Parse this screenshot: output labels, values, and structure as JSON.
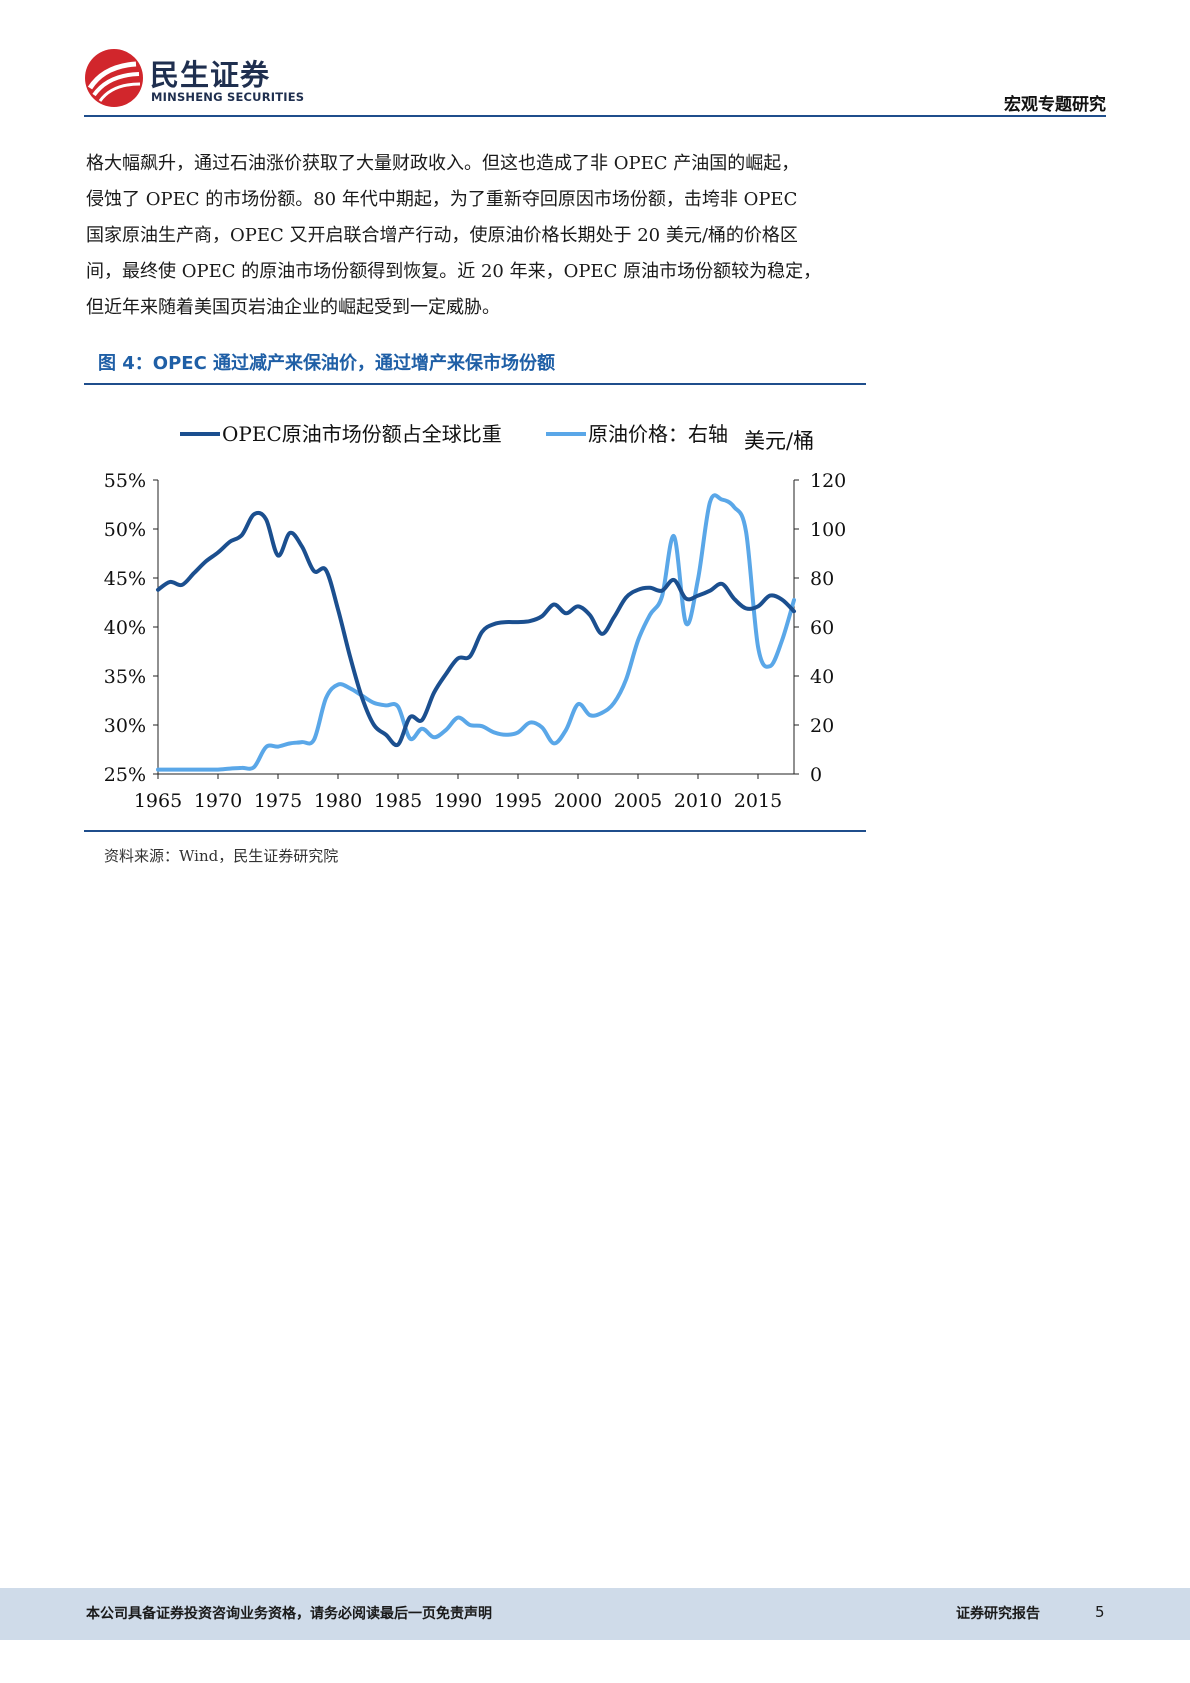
{
  "header": {
    "logo_cn": "民生证券",
    "logo_en": "MINSHENG SECURITIES",
    "title": "宏观专题研究"
  },
  "body": {
    "lines": [
      "格大幅飙升，通过石油涨价获取了大量财政收入。但这也造成了非 OPEC 产油国的崛起，",
      "侵蚀了 OPEC 的市场份额。80 年代中期起，为了重新夺回原因市场份额，击垮非 OPEC",
      "国家原油生产商，OPEC 又开启联合增产行动，使原油价格长期处于 20 美元/桶的价格区",
      "间，最终使 OPEC 的原油市场份额得到恢复。近 20 年来，OPEC 原油市场份额较为稳定，",
      "但近年来随着美国页岩油企业的崛起受到一定威胁。"
    ]
  },
  "figure": {
    "title": "图 4：OPEC 通过减产来保油价，通过增产来保市场份额",
    "source": "资料来源：Wind，民生证券研究院"
  },
  "chart_data": {
    "type": "line",
    "title": "",
    "left_axis": {
      "label": "",
      "range": [
        25,
        55
      ],
      "ticks": [
        25,
        30,
        35,
        40,
        45,
        50,
        55
      ],
      "tick_labels": [
        "25%",
        "30%",
        "35%",
        "40%",
        "45%",
        "50%",
        "55%"
      ]
    },
    "right_axis": {
      "label": "美元/桶",
      "range": [
        0,
        120
      ],
      "ticks": [
        0,
        20,
        40,
        60,
        80,
        100,
        120
      ],
      "tick_labels": [
        "0",
        "20",
        "40",
        "60",
        "80",
        "100",
        "120"
      ]
    },
    "x_axis": {
      "range": [
        1965,
        2018
      ],
      "ticks": [
        1965,
        1970,
        1975,
        1980,
        1985,
        1990,
        1995,
        2000,
        2005,
        2010,
        2015
      ],
      "tick_labels": [
        "1965",
        "1970",
        "1975",
        "1980",
        "1985",
        "1990",
        "1995",
        "2000",
        "2005",
        "2010",
        "2015"
      ]
    },
    "legend_position": "top",
    "grid": false,
    "x": [
      1965,
      1966,
      1967,
      1968,
      1969,
      1970,
      1971,
      1972,
      1973,
      1974,
      1975,
      1976,
      1977,
      1978,
      1979,
      1980,
      1981,
      1982,
      1983,
      1984,
      1985,
      1986,
      1987,
      1988,
      1989,
      1990,
      1991,
      1992,
      1993,
      1994,
      1995,
      1996,
      1997,
      1998,
      1999,
      2000,
      2001,
      2002,
      2003,
      2004,
      2005,
      2006,
      2007,
      2008,
      2009,
      2010,
      2011,
      2012,
      2013,
      2014,
      2015,
      2016,
      2017,
      2018
    ],
    "series": [
      {
        "name": "OPEC原油市场份额占全球比重",
        "axis": "left",
        "color": "#1b4f8f",
        "values": [
          43.8,
          44.6,
          44.3,
          45.5,
          46.7,
          47.6,
          48.7,
          49.4,
          51.5,
          51.0,
          47.3,
          49.6,
          48.2,
          45.7,
          45.8,
          41.8,
          37.0,
          32.8,
          30.0,
          29.0,
          28.0,
          30.8,
          30.5,
          33.3,
          35.2,
          36.8,
          37.0,
          39.5,
          40.3,
          40.5,
          40.5,
          40.6,
          41.1,
          42.3,
          41.4,
          42.1,
          41.2,
          39.3,
          41.0,
          43.0,
          43.8,
          44.0,
          43.7,
          44.8,
          42.9,
          43.2,
          43.7,
          44.4,
          42.9,
          41.9,
          42.1,
          43.2,
          42.8,
          41.6
        ]
      },
      {
        "name": "原油价格：右轴",
        "axis": "right",
        "color": "#5aa7e8",
        "values": [
          1.8,
          1.8,
          1.8,
          1.8,
          1.8,
          1.8,
          2.2,
          2.5,
          2.8,
          11.0,
          11.2,
          12.5,
          13.0,
          14.0,
          31.0,
          36.5,
          35.0,
          32.0,
          29.0,
          28.0,
          27.5,
          14.5,
          18.5,
          15.0,
          18.0,
          23.0,
          20.0,
          19.5,
          17.0,
          16.0,
          17.0,
          21.0,
          19.0,
          12.5,
          18.0,
          28.5,
          24.0,
          25.0,
          29.0,
          38.5,
          54.5,
          65.0,
          72.5,
          97.0,
          61.5,
          79.5,
          111.0,
          112.0,
          109.0,
          99.0,
          52.0,
          44.0,
          54.5,
          71.0
        ]
      }
    ]
  },
  "footer": {
    "disclaimer": "本公司具备证券投资咨询业务资格，请务必阅读最后一页免责声明",
    "report_type": "证券研究报告",
    "page_number": "5"
  },
  "colors": {
    "brand_red": "#d1262c",
    "brand_navy": "#1f2f4f",
    "rule_blue": "#1f4e8c",
    "footer_bg": "#cfdbe9"
  }
}
